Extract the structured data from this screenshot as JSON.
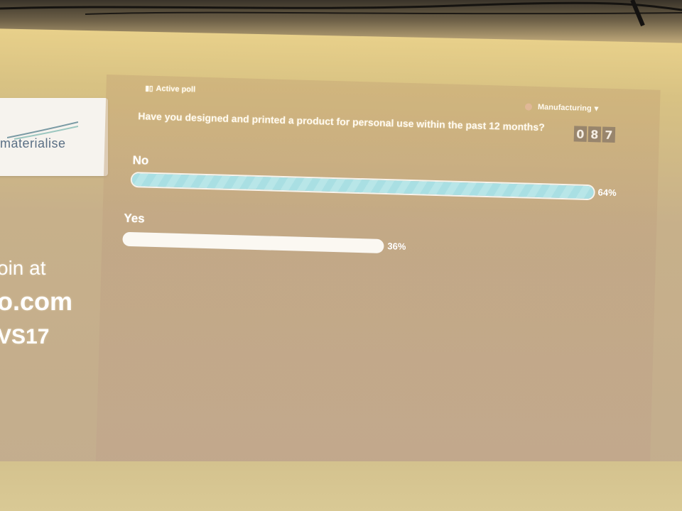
{
  "poll": {
    "status_label": "Active poll",
    "category_label": "Manufacturing",
    "question": "Have you designed and printed a product for personal use within the past 12 months?",
    "counter_digits": [
      "0",
      "8",
      "7"
    ],
    "options": [
      {
        "label": "No",
        "percent_label": "64%",
        "value": 64
      },
      {
        "label": "Yes",
        "percent_label": "36%",
        "value": 36
      }
    ],
    "colors": {
      "winner_bar": "#a9dfe3",
      "plain_bar": "#fbf8f2"
    }
  },
  "sidebar": {
    "logo_text": "materialise",
    "join_lines": [
      "oin at",
      "o.com",
      "VS17"
    ]
  }
}
